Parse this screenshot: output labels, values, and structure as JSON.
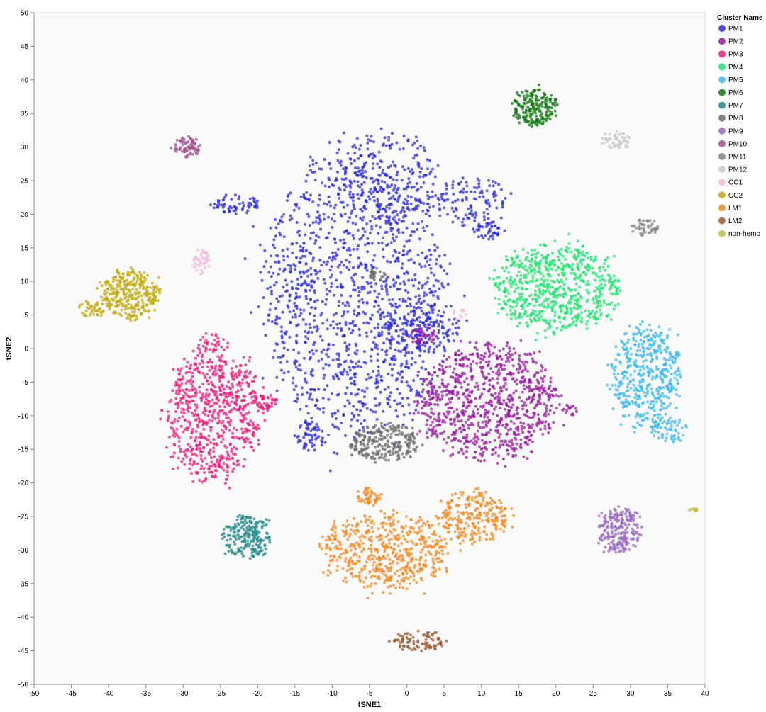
{
  "chart_data": {
    "type": "scatter",
    "xlabel": "tSNE1",
    "ylabel": "tSNE2",
    "xlim": [
      -50,
      40
    ],
    "ylim": [
      -50,
      50
    ],
    "x_ticks": [
      -50,
      -45,
      -40,
      -35,
      -30,
      -25,
      -20,
      -15,
      -10,
      -5,
      0,
      5,
      10,
      15,
      20,
      25,
      30,
      35,
      40
    ],
    "y_ticks": [
      50,
      45,
      40,
      35,
      30,
      25,
      20,
      15,
      10,
      5,
      0,
      -5,
      -10,
      -15,
      -20,
      -25,
      -30,
      -35,
      -40,
      -45,
      -50
    ],
    "grid": false,
    "legend": {
      "title": "Cluster Name",
      "position": "top-right"
    },
    "series": [
      {
        "name": "PM1",
        "color": "#2a2ae0",
        "blobs": [
          {
            "cx": -7,
            "cy": 8,
            "rx": 13,
            "ry": 22,
            "n": 1300
          },
          {
            "cx": -3,
            "cy": 25,
            "rx": 8,
            "ry": 8,
            "n": 250
          },
          {
            "cx": 9,
            "cy": 22,
            "rx": 5,
            "ry": 4,
            "n": 120
          },
          {
            "cx": 11,
            "cy": 17.5,
            "rx": 2,
            "ry": 1.5,
            "n": 40
          },
          {
            "cx": -23,
            "cy": 21.5,
            "rx": 3.5,
            "ry": 1.5,
            "n": 60
          },
          {
            "cx": -13,
            "cy": -13,
            "rx": 2,
            "ry": 2.5,
            "n": 60
          },
          {
            "cx": 2,
            "cy": 3,
            "rx": 6,
            "ry": 4,
            "n": 150
          }
        ]
      },
      {
        "name": "PM2",
        "color": "#9a1aa0",
        "blobs": [
          {
            "cx": 11,
            "cy": -8,
            "rx": 10,
            "ry": 9,
            "n": 900
          },
          {
            "cx": 2,
            "cy": 2,
            "rx": 2,
            "ry": 1.5,
            "n": 40
          },
          {
            "cx": 22,
            "cy": -9,
            "rx": 1,
            "ry": 1,
            "n": 15
          }
        ]
      },
      {
        "name": "PM3",
        "color": "#f01a7c",
        "blobs": [
          {
            "cx": -26,
            "cy": -10,
            "rx": 7,
            "ry": 10,
            "n": 700
          },
          {
            "cx": -19,
            "cy": -8,
            "rx": 1.8,
            "ry": 1.2,
            "n": 40
          },
          {
            "cx": -26,
            "cy": 1,
            "rx": 2,
            "ry": 1.5,
            "n": 30
          }
        ]
      },
      {
        "name": "PM4",
        "color": "#1ee66e",
        "blobs": [
          {
            "cx": 20,
            "cy": 9,
            "rx": 9,
            "ry": 7,
            "n": 700
          }
        ]
      },
      {
        "name": "PM5",
        "color": "#3cb8ee",
        "blobs": [
          {
            "cx": 32,
            "cy": -4,
            "rx": 5,
            "ry": 8,
            "n": 450
          },
          {
            "cx": 35,
            "cy": -12,
            "rx": 2.5,
            "ry": 2,
            "n": 60
          }
        ]
      },
      {
        "name": "PM6",
        "color": "#137a13",
        "blobs": [
          {
            "cx": 17,
            "cy": 36,
            "rx": 3,
            "ry": 3,
            "n": 200
          }
        ]
      },
      {
        "name": "PM7",
        "color": "#238a8a",
        "blobs": [
          {
            "cx": -21.5,
            "cy": -28,
            "rx": 3.5,
            "ry": 3.5,
            "n": 200
          }
        ]
      },
      {
        "name": "PM8",
        "color": "#6e6e6e",
        "blobs": [
          {
            "cx": -3,
            "cy": -14,
            "rx": 5,
            "ry": 3,
            "n": 250
          },
          {
            "cx": -4,
            "cy": 11,
            "rx": 1.5,
            "ry": 1,
            "n": 25
          }
        ]
      },
      {
        "name": "PM9",
        "color": "#9a68c2",
        "blobs": [
          {
            "cx": 28.5,
            "cy": -27,
            "rx": 3,
            "ry": 3.5,
            "n": 220
          }
        ]
      },
      {
        "name": "PM10",
        "color": "#a0508a",
        "blobs": [
          {
            "cx": -29.5,
            "cy": 30,
            "rx": 2,
            "ry": 1.5,
            "n": 70
          }
        ]
      },
      {
        "name": "PM11",
        "color": "#858585",
        "blobs": [
          {
            "cx": 32,
            "cy": 18,
            "rx": 2,
            "ry": 1.3,
            "n": 50
          }
        ]
      },
      {
        "name": "PM12",
        "color": "#c8c8c8",
        "blobs": [
          {
            "cx": 28,
            "cy": 31,
            "rx": 2,
            "ry": 1.5,
            "n": 50
          }
        ]
      },
      {
        "name": "CC1",
        "color": "#f4b8d6",
        "blobs": [
          {
            "cx": -27.5,
            "cy": 13,
            "rx": 1.5,
            "ry": 2,
            "n": 40
          },
          {
            "cx": 7,
            "cy": 5,
            "rx": 1,
            "ry": 1,
            "n": 10
          }
        ]
      },
      {
        "name": "CC2",
        "color": "#c2aa0c",
        "blobs": [
          {
            "cx": -37,
            "cy": 8,
            "rx": 4,
            "ry": 4,
            "n": 300
          },
          {
            "cx": -42,
            "cy": 6,
            "rx": 2,
            "ry": 1.5,
            "n": 40
          }
        ]
      },
      {
        "name": "LM1",
        "color": "#f58a22",
        "blobs": [
          {
            "cx": -3,
            "cy": -30,
            "rx": 9,
            "ry": 6,
            "n": 550
          },
          {
            "cx": 9,
            "cy": -25,
            "rx": 5,
            "ry": 4,
            "n": 250
          },
          {
            "cx": -5,
            "cy": -22,
            "rx": 2,
            "ry": 1.5,
            "n": 50
          }
        ]
      },
      {
        "name": "LM2",
        "color": "#9a5a32",
        "blobs": [
          {
            "cx": 1.5,
            "cy": -43.5,
            "rx": 4,
            "ry": 1.5,
            "n": 90
          }
        ]
      },
      {
        "name": "non-hemo",
        "color": "#bebe44",
        "blobs": [
          {
            "cx": 38.5,
            "cy": -24,
            "rx": 0.7,
            "ry": 0.3,
            "n": 12
          }
        ]
      }
    ]
  }
}
